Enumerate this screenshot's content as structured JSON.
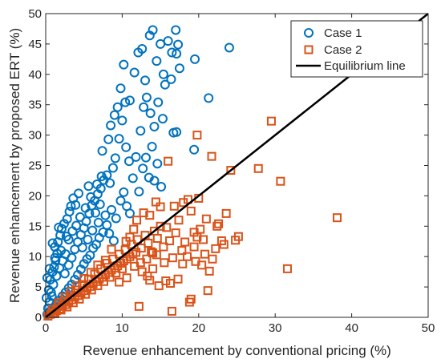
{
  "chart_data": {
    "type": "scatter",
    "title": "",
    "xlabel": "Revenue enhancement by conventional pricing (%)",
    "ylabel": "Revenue enhancement by proposed ERT (%)",
    "xlim": [
      0,
      50
    ],
    "ylim": [
      0,
      50
    ],
    "x_ticks": [
      "0",
      "10",
      "20",
      "30",
      "40",
      "50"
    ],
    "y_ticks": [
      "0",
      "5",
      "10",
      "15",
      "20",
      "25",
      "30",
      "35",
      "40",
      "45",
      "50"
    ],
    "grid": false,
    "legend_position": "top-right",
    "series": [
      {
        "name": "Case 1",
        "marker": "circle",
        "color": "#0072BD",
        "points": [
          [
            0.2,
            0.5
          ],
          [
            0.3,
            1.5
          ],
          [
            0.5,
            2.5
          ],
          [
            0.8,
            3.5
          ],
          [
            0.4,
            4.5
          ],
          [
            0.6,
            6.2
          ],
          [
            0.9,
            7.5
          ],
          [
            1.1,
            8.3
          ],
          [
            1.3,
            9.4
          ],
          [
            1.5,
            10.5
          ],
          [
            1.2,
            11.6
          ],
          [
            1.6,
            12.4
          ],
          [
            1.9,
            13.5
          ],
          [
            2.1,
            14.6
          ],
          [
            2.4,
            15.4
          ],
          [
            2.8,
            16.2
          ],
          [
            3.1,
            17.4
          ],
          [
            3.3,
            18.3
          ],
          [
            3.6,
            19.6
          ],
          [
            3.0,
            12.8
          ],
          [
            2.6,
            10.4
          ],
          [
            2.2,
            9.3
          ],
          [
            1.8,
            8.1
          ],
          [
            1.4,
            6.8
          ],
          [
            1.0,
            5.4
          ],
          [
            0.7,
            4.1
          ],
          [
            2.5,
            7.2
          ],
          [
            3.0,
            8.6
          ],
          [
            3.4,
            9.8
          ],
          [
            3.8,
            11.2
          ],
          [
            4.2,
            12.4
          ],
          [
            4.6,
            13.6
          ],
          [
            5.0,
            14.7
          ],
          [
            5.3,
            15.8
          ],
          [
            5.7,
            17.1
          ],
          [
            6.0,
            18.4
          ],
          [
            6.4,
            19.2
          ],
          [
            6.8,
            20.3
          ],
          [
            7.2,
            21.2
          ],
          [
            7.6,
            22.6
          ],
          [
            8.0,
            23.4
          ],
          [
            7.4,
            27.4
          ],
          [
            8.2,
            29.3
          ],
          [
            8.5,
            31.6
          ],
          [
            9.0,
            33.3
          ],
          [
            9.4,
            34.6
          ],
          [
            9.8,
            37.7
          ],
          [
            10.2,
            41.6
          ],
          [
            11.0,
            35.7
          ],
          [
            11.6,
            40.3
          ],
          [
            12.1,
            43.6
          ],
          [
            12.6,
            44.2
          ],
          [
            13.0,
            39.0
          ],
          [
            13.6,
            46.4
          ],
          [
            14.0,
            47.3
          ],
          [
            14.5,
            42.2
          ],
          [
            15.0,
            45.0
          ],
          [
            15.4,
            40.0
          ],
          [
            16.0,
            45.5
          ],
          [
            16.5,
            43.6
          ],
          [
            17.0,
            47.3
          ],
          [
            17.3,
            44.9
          ],
          [
            17.1,
            43.4
          ],
          [
            17.5,
            41.0
          ],
          [
            12.4,
            30.7
          ],
          [
            12.8,
            34.6
          ],
          [
            13.2,
            36.2
          ],
          [
            13.7,
            33.6
          ],
          [
            14.2,
            31.4
          ],
          [
            14.7,
            35.4
          ],
          [
            15.3,
            32.7
          ],
          [
            15.6,
            38.3
          ],
          [
            16.4,
            39.2
          ],
          [
            16.7,
            30.4
          ],
          [
            17.1,
            30.5
          ],
          [
            19.4,
            27.6
          ],
          [
            19.5,
            42.5
          ],
          [
            21.3,
            36.1
          ],
          [
            24.0,
            44.4
          ],
          [
            10.5,
            28.0
          ],
          [
            10.9,
            25.7
          ],
          [
            11.4,
            22.9
          ],
          [
            11.8,
            26.4
          ],
          [
            12.2,
            20.7
          ],
          [
            12.7,
            24.5
          ],
          [
            13.1,
            26.3
          ],
          [
            13.5,
            23.0
          ],
          [
            13.9,
            28.1
          ],
          [
            14.2,
            22.5
          ],
          [
            14.6,
            25.3
          ],
          [
            15.1,
            21.5
          ],
          [
            9.8,
            19.2
          ],
          [
            10.2,
            20.6
          ],
          [
            10.6,
            18.3
          ],
          [
            11.0,
            17.1
          ],
          [
            9.2,
            16.3
          ],
          [
            8.6,
            17.7
          ],
          [
            8.8,
            24.6
          ],
          [
            9.1,
            26.2
          ],
          [
            9.6,
            29.4
          ],
          [
            10.0,
            32.4
          ],
          [
            10.4,
            35.4
          ],
          [
            8.0,
            15.2
          ],
          [
            7.5,
            14.0
          ],
          [
            7.0,
            13.1
          ],
          [
            6.6,
            12.0
          ],
          [
            6.2,
            11.4
          ],
          [
            5.8,
            10.2
          ],
          [
            5.4,
            9.6
          ],
          [
            5.0,
            8.8
          ],
          [
            4.6,
            7.9
          ],
          [
            4.2,
            7.0
          ],
          [
            3.8,
            6.2
          ],
          [
            3.4,
            5.4
          ],
          [
            3.0,
            4.8
          ],
          [
            2.6,
            4.1
          ],
          [
            2.2,
            3.5
          ],
          [
            1.8,
            2.8
          ],
          [
            1.4,
            2.2
          ],
          [
            1.0,
            1.6
          ],
          [
            0.6,
            1.0
          ],
          [
            0.3,
            0.6
          ],
          [
            4.5,
            16.5
          ],
          [
            5.2,
            18.0
          ],
          [
            5.9,
            19.8
          ],
          [
            6.5,
            17.2
          ],
          [
            7.1,
            18.6
          ],
          [
            7.8,
            16.8
          ],
          [
            8.3,
            13.8
          ],
          [
            8.9,
            12.6
          ],
          [
            3.5,
            14.2
          ],
          [
            4.0,
            15.1
          ],
          [
            4.8,
            11.5
          ],
          [
            5.5,
            12.8
          ],
          [
            6.1,
            14.3
          ],
          [
            6.9,
            15.6
          ],
          [
            2.0,
            11.0
          ],
          [
            2.7,
            13.3
          ],
          [
            1.2,
            9.8
          ],
          [
            0.5,
            8.0
          ],
          [
            0.2,
            6.5
          ],
          [
            0.1,
            3.2
          ],
          [
            0.9,
            12.2
          ],
          [
            1.7,
            14.8
          ],
          [
            3.9,
            18.5
          ],
          [
            4.3,
            20.4
          ],
          [
            5.6,
            21.6
          ],
          [
            6.7,
            21.9
          ],
          [
            7.3,
            23.2
          ],
          [
            8.4,
            22.1
          ]
        ]
      },
      {
        "name": "Case 2",
        "marker": "square",
        "color": "#D95319",
        "points": [
          [
            0.3,
            0.2
          ],
          [
            0.6,
            0.5
          ],
          [
            1.0,
            0.8
          ],
          [
            1.4,
            1.1
          ],
          [
            1.8,
            1.4
          ],
          [
            2.2,
            1.8
          ],
          [
            2.6,
            2.1
          ],
          [
            3.0,
            2.5
          ],
          [
            3.4,
            2.9
          ],
          [
            3.8,
            3.3
          ],
          [
            4.2,
            3.6
          ],
          [
            4.6,
            4.0
          ],
          [
            5.0,
            4.4
          ],
          [
            5.4,
            4.8
          ],
          [
            5.8,
            5.1
          ],
          [
            6.2,
            5.5
          ],
          [
            6.6,
            5.9
          ],
          [
            7.0,
            6.3
          ],
          [
            7.4,
            6.6
          ],
          [
            7.8,
            7.0
          ],
          [
            8.2,
            7.4
          ],
          [
            8.6,
            7.8
          ],
          [
            9.0,
            8.1
          ],
          [
            9.4,
            8.5
          ],
          [
            9.8,
            8.9
          ],
          [
            10.2,
            9.3
          ],
          [
            10.6,
            9.6
          ],
          [
            11.0,
            10.0
          ],
          [
            11.4,
            10.4
          ],
          [
            11.8,
            10.7
          ],
          [
            1.2,
            0.6
          ],
          [
            2.0,
            1.2
          ],
          [
            2.8,
            1.7
          ],
          [
            3.6,
            2.4
          ],
          [
            4.4,
            3.0
          ],
          [
            5.2,
            3.8
          ],
          [
            6.0,
            4.5
          ],
          [
            6.8,
            5.2
          ],
          [
            7.6,
            5.9
          ],
          [
            8.4,
            6.6
          ],
          [
            9.2,
            7.3
          ],
          [
            10.0,
            8.0
          ],
          [
            1.6,
            1.9
          ],
          [
            2.4,
            2.7
          ],
          [
            3.2,
            3.6
          ],
          [
            4.0,
            4.5
          ],
          [
            4.8,
            5.4
          ],
          [
            5.6,
            6.3
          ],
          [
            6.4,
            7.1
          ],
          [
            7.2,
            8.0
          ],
          [
            8.0,
            8.9
          ],
          [
            8.8,
            9.6
          ],
          [
            9.6,
            10.4
          ],
          [
            10.4,
            11.1
          ],
          [
            11.2,
            12.0
          ],
          [
            12.0,
            12.8
          ],
          [
            12.5,
            11.4
          ],
          [
            13.0,
            13.5
          ],
          [
            13.4,
            12.2
          ],
          [
            13.8,
            10.8
          ],
          [
            14.2,
            14.2
          ],
          [
            14.6,
            13.0
          ],
          [
            15.0,
            15.0
          ],
          [
            15.4,
            11.6
          ],
          [
            15.8,
            14.8
          ],
          [
            16.2,
            12.6
          ],
          [
            16.6,
            9.8
          ],
          [
            17.0,
            13.9
          ],
          [
            17.4,
            16.0
          ],
          [
            17.8,
            11.0
          ],
          [
            18.2,
            12.4
          ],
          [
            18.6,
            19.4
          ],
          [
            19.0,
            17.5
          ],
          [
            19.4,
            14.0
          ],
          [
            19.8,
            13.2
          ],
          [
            20.2,
            14.5
          ],
          [
            20.6,
            12.8
          ],
          [
            21.0,
            16.2
          ],
          [
            21.4,
            7.6
          ],
          [
            21.8,
            9.6
          ],
          [
            22.2,
            11.3
          ],
          [
            22.6,
            15.4
          ],
          [
            23.0,
            12.6
          ],
          [
            23.6,
            17.1
          ],
          [
            24.2,
            24.2
          ],
          [
            24.8,
            12.7
          ],
          [
            25.2,
            13.3
          ],
          [
            21.7,
            26.5
          ],
          [
            19.8,
            30.0
          ],
          [
            27.8,
            24.5
          ],
          [
            29.5,
            32.3
          ],
          [
            30.7,
            22.4
          ],
          [
            31.6,
            8.0
          ],
          [
            38.1,
            16.4
          ],
          [
            16.0,
            25.7
          ],
          [
            15.0,
            18.2
          ],
          [
            14.4,
            19.0
          ],
          [
            13.6,
            16.8
          ],
          [
            12.8,
            17.2
          ],
          [
            11.9,
            16.0
          ],
          [
            11.5,
            14.5
          ],
          [
            11.0,
            13.2
          ],
          [
            10.5,
            12.5
          ],
          [
            12.6,
            7.5
          ],
          [
            13.3,
            6.8
          ],
          [
            14.0,
            8.0
          ],
          [
            14.8,
            5.2
          ],
          [
            15.7,
            6.0
          ],
          [
            16.3,
            5.6
          ],
          [
            17.9,
            8.8
          ],
          [
            18.5,
            10.0
          ],
          [
            19.6,
            9.2
          ],
          [
            20.8,
            10.4
          ],
          [
            21.2,
            4.4
          ],
          [
            19.0,
            3.0
          ],
          [
            18.8,
            2.5
          ],
          [
            16.5,
            1.0
          ],
          [
            12.2,
            1.8
          ],
          [
            13.6,
            6.1
          ],
          [
            9.6,
            5.8
          ],
          [
            10.6,
            6.5
          ],
          [
            11.6,
            8.4
          ],
          [
            12.4,
            9.0
          ],
          [
            13.2,
            9.6
          ],
          [
            14.0,
            10.6
          ],
          [
            8.6,
            11.2
          ],
          [
            7.8,
            9.4
          ],
          [
            6.8,
            8.6
          ],
          [
            5.9,
            7.4
          ],
          [
            5.0,
            6.4
          ],
          [
            4.1,
            5.2
          ],
          [
            3.3,
            4.3
          ],
          [
            2.5,
            3.3
          ],
          [
            1.7,
            2.4
          ],
          [
            0.9,
            1.3
          ],
          [
            16.8,
            18.3
          ],
          [
            18.0,
            18.9
          ],
          [
            20.0,
            19.6
          ],
          [
            22.4,
            15.0
          ],
          [
            23.3,
            12.0
          ],
          [
            17.3,
            6.3
          ],
          [
            19.4,
            11.6
          ],
          [
            20.4,
            8.6
          ],
          [
            15.5,
            9.0
          ],
          [
            14.5,
            10.3
          ]
        ]
      },
      {
        "name": "Equilibrium line",
        "marker": "line",
        "color": "#000000",
        "points": [
          [
            0,
            0
          ],
          [
            50,
            50
          ]
        ]
      }
    ]
  }
}
